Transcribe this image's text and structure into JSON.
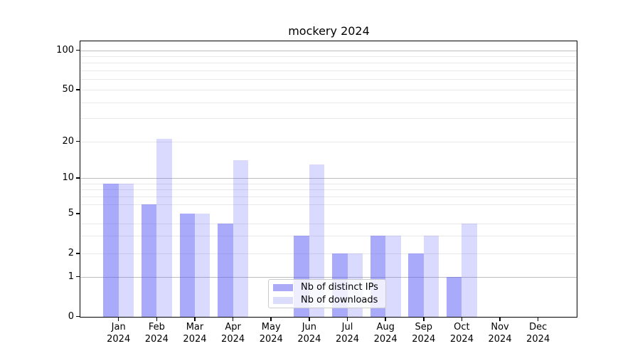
{
  "title": "mockery 2024",
  "chart_data": {
    "type": "bar",
    "title": "mockery 2024",
    "categories": [
      "Jan",
      "Feb",
      "Mar",
      "Apr",
      "May",
      "Jun",
      "Jul",
      "Aug",
      "Sep",
      "Oct",
      "Nov",
      "Dec"
    ],
    "category_year": "2024",
    "series": [
      {
        "name": "Nb of distinct IPs",
        "color": "#aaaaf7",
        "fill": "rgba(85,85,245,0.5)",
        "values": [
          9,
          6,
          5,
          4,
          0,
          3,
          2,
          3,
          2,
          1,
          0,
          0
        ]
      },
      {
        "name": "Nb of downloads",
        "color": "#dcdcfb",
        "fill": "rgba(80,80,248,0.21)",
        "values": [
          9,
          21,
          5,
          14,
          0,
          13,
          2,
          3,
          3,
          4,
          0,
          0
        ]
      }
    ],
    "y_axis": {
      "tick_values": [
        0,
        1,
        2,
        5,
        10,
        20,
        50,
        100
      ],
      "tick_labels": [
        "0",
        "1",
        "2",
        "5",
        "10",
        "20",
        "50",
        "100"
      ],
      "major_grid_values": [
        1,
        10,
        100
      ],
      "minor_grid_values": [
        2,
        3,
        4,
        6,
        7,
        8,
        9,
        20,
        30,
        40,
        50,
        60,
        70,
        80,
        90
      ],
      "scale": "log-like, linear below 1",
      "range_bottom": 0
    },
    "x_axis": {
      "label_line2": "2024"
    },
    "legend": {
      "position": "lower center",
      "entries": [
        "Nb of distinct IPs",
        "Nb of downloads"
      ]
    },
    "grid": true,
    "colors": {
      "major_grid": "#bdbdbd",
      "minor_grid": "#e9e9e9",
      "spine": "#000000",
      "legend_border": "#cccccc"
    }
  }
}
